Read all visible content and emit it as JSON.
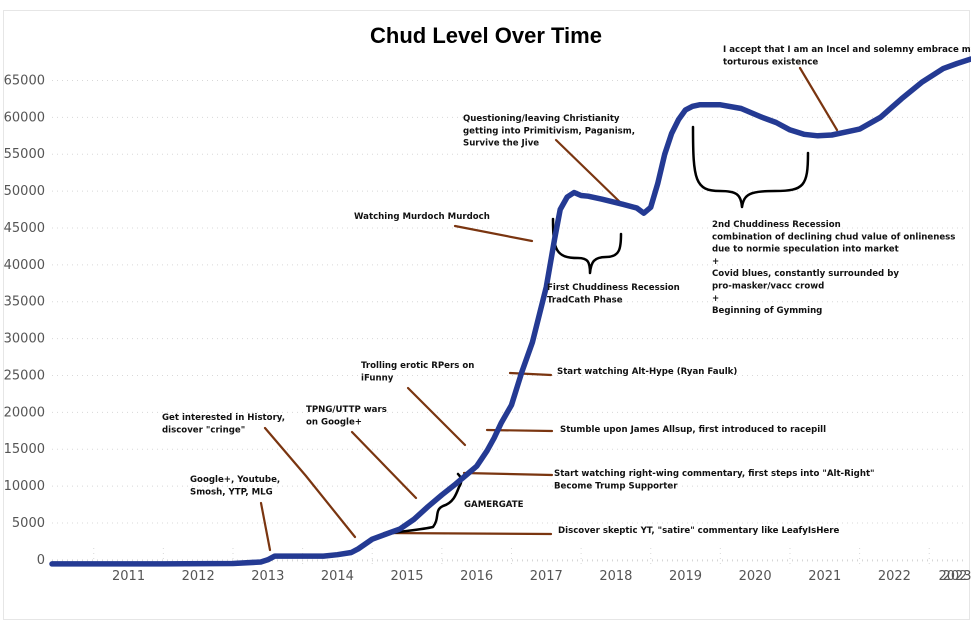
{
  "chart_data": {
    "type": "line",
    "title": "Chud Level Over Time",
    "xlabel": "",
    "ylabel": "",
    "xlim": [
      2010.3,
      2023.6
    ],
    "ylim": [
      -700,
      67500
    ],
    "x_ticks": [
      "2011",
      "2012",
      "2013",
      "2014",
      "2015",
      "2016",
      "2017",
      "2018",
      "2019",
      "2020",
      "2021",
      "2022",
      "2023",
      "202"
    ],
    "y_ticks": [
      "0",
      "5000",
      "10000",
      "15000",
      "20000",
      "25000",
      "30000",
      "35000",
      "40000",
      "45000",
      "50000",
      "55000",
      "60000",
      "65000"
    ],
    "line_color": "#243a93",
    "annotation_color": "#7a3510",
    "series": [
      {
        "x": [
          2010.4,
          2011.0,
          2012.0,
          2013.0,
          2013.4,
          2013.5,
          2013.6,
          2014.0,
          2014.3,
          2014.5,
          2014.7,
          2014.8,
          2015.0,
          2015.2,
          2015.4,
          2015.6,
          2015.8,
          2016.0,
          2016.2,
          2016.4,
          2016.5,
          2016.65,
          2016.75,
          2016.85,
          2017.0,
          2017.15,
          2017.3,
          2017.5,
          2017.62,
          2017.7,
          2017.8,
          2017.9,
          2018.0,
          2018.1,
          2018.3,
          2018.6,
          2018.8,
          2018.9,
          2019.0,
          2019.1,
          2019.2,
          2019.3,
          2019.4,
          2019.5,
          2019.6,
          2019.7,
          2019.8,
          2020.0,
          2020.3,
          2020.6,
          2020.8,
          2021.0,
          2021.2,
          2021.4,
          2021.6,
          2021.8,
          2022.0,
          2022.3,
          2022.6,
          2022.9,
          2023.2,
          2023.4,
          2023.6
        ],
        "y": [
          -550,
          -550,
          -550,
          -500,
          -300,
          0,
          500,
          500,
          500,
          700,
          1000,
          1500,
          2800,
          3500,
          4200,
          5500,
          7200,
          8800,
          10300,
          11900,
          12700,
          14800,
          16500,
          18500,
          21000,
          25500,
          29500,
          37000,
          43500,
          47500,
          49200,
          49800,
          49400,
          49300,
          48900,
          48200,
          47700,
          47000,
          47800,
          51000,
          55000,
          57800,
          59700,
          61000,
          61500,
          61700,
          61700,
          61700,
          61200,
          60000,
          59300,
          58300,
          57700,
          57500,
          57600,
          58000,
          58400,
          60000,
          62500,
          64800,
          66600,
          67300,
          67900
        ]
      }
    ],
    "annotations": [
      {
        "lines": [
          "I accept that I am an Incel and solemny embrace my",
          "torturous existence"
        ]
      },
      {
        "lines": [
          "Questioning/leaving Christianity",
          "getting into Primitivism, Paganism,",
          "Survive the Jive"
        ]
      },
      {
        "lines": [
          "Watching Murdoch Murdoch"
        ]
      },
      {
        "lines": [
          "First Chuddiness Recession",
          "TradCath Phase"
        ]
      },
      {
        "lines": [
          "2nd Chuddiness Recession",
          "combination of declining chud value of onlineness",
          "due to normie speculation into market",
          "+",
          "Covid blues, constantly surrounded by",
          "pro-masker/vacc crowd",
          "+",
          "Beginning of Gymming"
        ]
      },
      {
        "lines": [
          "Trolling erotic RPers on",
          "iFunny"
        ]
      },
      {
        "lines": [
          "Start watching Alt-Hype (Ryan Faulk)"
        ]
      },
      {
        "lines": [
          "TPNG/UTTP wars",
          "on Google+"
        ]
      },
      {
        "lines": [
          "Get interested in History,",
          "discover \"cringe\""
        ]
      },
      {
        "lines": [
          "Stumble upon James Allsup, first introduced to racepill"
        ]
      },
      {
        "lines": [
          "Google+, Youtube,",
          "Smosh, YTP, MLG"
        ]
      },
      {
        "lines": [
          "Start watching right-wing commentary, first steps into \"Alt-Right\"",
          "Become Trump Supporter"
        ]
      },
      {
        "lines": [
          "GAMERGATE"
        ]
      },
      {
        "lines": [
          "Discover skeptic YT, \"satire\" commentary like LeafyIsHere"
        ]
      }
    ]
  }
}
